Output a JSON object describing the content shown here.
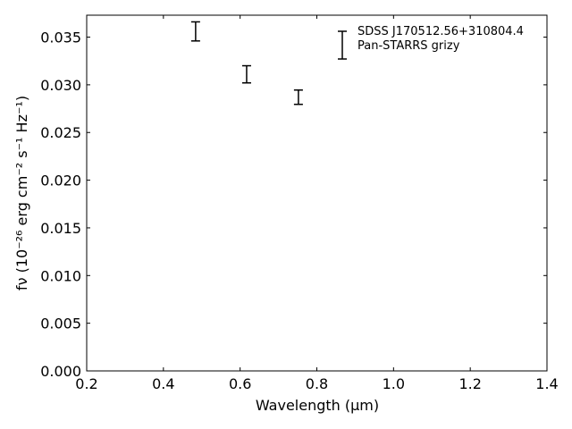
{
  "chart_data": {
    "type": "errorbar",
    "xlabel": "Wavelength (μm)",
    "ylabel": "fν (10⁻²⁶ erg cm⁻² s⁻¹ Hz⁻¹)",
    "series": [
      {
        "name": "SDSS J170512.56+310804.4\nPan-STARRS grizy",
        "color": "#000000",
        "x": [
          0.484,
          0.617,
          0.752
        ],
        "values": [
          0.0356,
          0.0311,
          0.0287
        ],
        "errors": [
          0.001,
          0.0009,
          0.00075
        ]
      }
    ],
    "xlim": [
      0.2,
      1.4
    ],
    "xticks": [
      0.2,
      0.4,
      0.6,
      0.8,
      {
        "value": 1,
        "label": "1.0"
      },
      1.2,
      1.4
    ],
    "ylim": [
      0,
      0.0373
    ],
    "yticks": [
      {
        "value": 0,
        "label": "0.000"
      },
      0.005,
      {
        "value": 0.01,
        "label": "0.010"
      },
      0.015,
      {
        "value": 0.02,
        "label": "0.020"
      },
      0.025,
      {
        "value": 0.03,
        "label": "0.030"
      },
      0.035
    ],
    "legend": "upper right"
  }
}
